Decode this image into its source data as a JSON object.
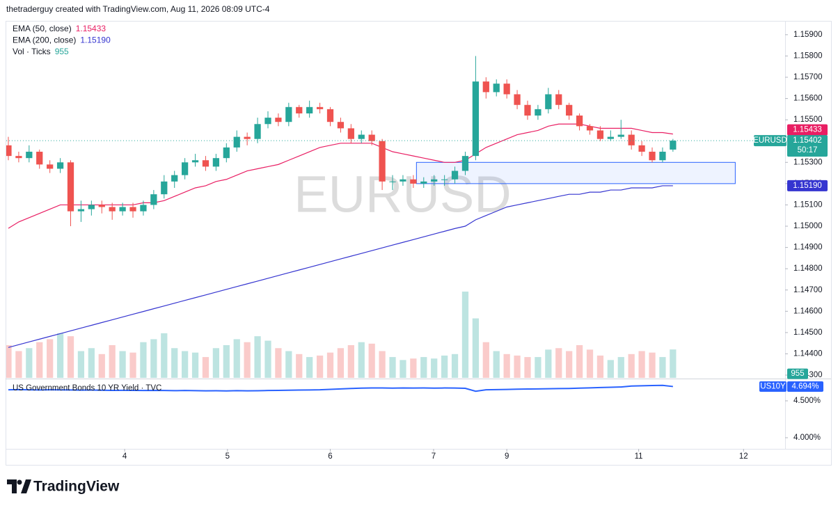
{
  "header": "thetraderguy created with TradingView.com, Aug 11, 2026 08:09 UTC-4",
  "logo": "TradingView",
  "chart_data": [
    {
      "type": "candlestick",
      "symbol": "EURUSD",
      "countdown": "50:17",
      "up_color": "#26a69a",
      "down_color": "#ef5350",
      "x": [
        0,
        1,
        2,
        3,
        4,
        5,
        6,
        7,
        8,
        9,
        10,
        11,
        12,
        13,
        14,
        15,
        16,
        17,
        18,
        19,
        20,
        21,
        22,
        23,
        24,
        25,
        26,
        27,
        28,
        29,
        30,
        31,
        32,
        33,
        34,
        35,
        36,
        37,
        38,
        39,
        40,
        41,
        42,
        43,
        44,
        45,
        46,
        47,
        48,
        49,
        50,
        51,
        52,
        53,
        54,
        55,
        56,
        57,
        58,
        59,
        60,
        61,
        62,
        63,
        64
      ],
      "open": [
        1.1538,
        1.1533,
        1.1532,
        1.1535,
        1.1529,
        1.1527,
        1.153,
        1.1507,
        1.1508,
        1.151,
        1.1509,
        1.1507,
        1.1509,
        1.1507,
        1.151,
        1.1515,
        1.1521,
        1.1524,
        1.153,
        1.1531,
        1.1528,
        1.1532,
        1.1537,
        1.1542,
        1.1541,
        1.1548,
        1.1551,
        1.1549,
        1.1556,
        1.1553,
        1.1556,
        1.1555,
        1.1549,
        1.1546,
        1.1541,
        1.1543,
        1.154,
        1.1521,
        1.1521,
        1.1522,
        1.152,
        1.1521,
        1.1522,
        1.1522,
        1.1526,
        1.1533,
        1.1568,
        1.1563,
        1.1567,
        1.1562,
        1.1557,
        1.1552,
        1.1555,
        1.1562,
        1.1557,
        1.1552,
        1.1547,
        1.1545,
        1.1541,
        1.1542,
        1.1543,
        1.1538,
        1.1535,
        1.1531,
        1.1536
      ],
      "high": [
        1.1542,
        1.1535,
        1.1538,
        1.1536,
        1.1531,
        1.1532,
        1.1531,
        1.1512,
        1.1512,
        1.1512,
        1.1511,
        1.1511,
        1.1511,
        1.1512,
        1.1517,
        1.1524,
        1.1526,
        1.1532,
        1.1534,
        1.1533,
        1.1534,
        1.1539,
        1.1545,
        1.1544,
        1.1551,
        1.1554,
        1.1553,
        1.1558,
        1.1557,
        1.1559,
        1.1558,
        1.1556,
        1.1551,
        1.1548,
        1.1545,
        1.1545,
        1.1541,
        1.1524,
        1.1524,
        1.1524,
        1.1523,
        1.1524,
        1.1524,
        1.1528,
        1.1535,
        1.158,
        1.157,
        1.1569,
        1.1569,
        1.1564,
        1.1559,
        1.1557,
        1.1565,
        1.1564,
        1.1558,
        1.1553,
        1.1548,
        1.1547,
        1.1545,
        1.155,
        1.1545,
        1.154,
        1.1537,
        1.1537,
        1.1541
      ],
      "low": [
        1.1531,
        1.153,
        1.153,
        1.1527,
        1.1525,
        1.1525,
        1.15,
        1.1502,
        1.1505,
        1.1506,
        1.1503,
        1.1505,
        1.1504,
        1.1505,
        1.1508,
        1.1513,
        1.1518,
        1.1522,
        1.1528,
        1.1526,
        1.1526,
        1.153,
        1.1535,
        1.1538,
        1.1539,
        1.1546,
        1.1547,
        1.1547,
        1.1551,
        1.1551,
        1.1553,
        1.1547,
        1.1544,
        1.1539,
        1.1539,
        1.1538,
        1.1517,
        1.1517,
        1.1519,
        1.1518,
        1.1518,
        1.1519,
        1.1519,
        1.152,
        1.1524,
        1.1531,
        1.156,
        1.1561,
        1.156,
        1.1555,
        1.155,
        1.155,
        1.1553,
        1.1555,
        1.155,
        1.1545,
        1.1543,
        1.154,
        1.154,
        1.1541,
        1.1536,
        1.1533,
        1.153,
        1.153,
        1.1535
      ],
      "close": [
        1.1533,
        1.1532,
        1.1535,
        1.1529,
        1.1527,
        1.153,
        1.1507,
        1.1508,
        1.151,
        1.1509,
        1.1507,
        1.1509,
        1.1507,
        1.151,
        1.1515,
        1.1521,
        1.1524,
        1.153,
        1.1531,
        1.1528,
        1.1532,
        1.1537,
        1.1542,
        1.1541,
        1.1548,
        1.1551,
        1.1549,
        1.1556,
        1.1553,
        1.1556,
        1.1555,
        1.1549,
        1.1546,
        1.1541,
        1.1543,
        1.154,
        1.1521,
        1.1521,
        1.1522,
        1.152,
        1.1521,
        1.1522,
        1.1522,
        1.1526,
        1.1533,
        1.1568,
        1.1563,
        1.1567,
        1.1562,
        1.1557,
        1.1552,
        1.1555,
        1.1562,
        1.1557,
        1.1552,
        1.1547,
        1.1545,
        1.1541,
        1.1542,
        1.1543,
        1.1538,
        1.1535,
        1.1531,
        1.1535,
        1.15402
      ],
      "series": [
        {
          "name": "EMA (50, close)",
          "color": "#e91e63",
          "values": [
            1.1499,
            1.1502,
            1.1504,
            1.1506,
            1.1508,
            1.151,
            1.151,
            1.151,
            1.151,
            1.151,
            1.151,
            1.151,
            1.151,
            1.1511,
            1.1511,
            1.1512,
            1.1514,
            1.1516,
            1.1518,
            1.1519,
            1.1521,
            1.1522,
            1.1524,
            1.1526,
            1.1527,
            1.1528,
            1.1529,
            1.1531,
            1.1533,
            1.1535,
            1.1537,
            1.1538,
            1.1539,
            1.1539,
            1.1539,
            1.1539,
            1.1537,
            1.1535,
            1.1534,
            1.1533,
            1.1532,
            1.1531,
            1.153,
            1.153,
            1.1531,
            1.1534,
            1.1537,
            1.1539,
            1.1541,
            1.1543,
            1.1544,
            1.1545,
            1.1547,
            1.1548,
            1.1548,
            1.1548,
            1.1547,
            1.1546,
            1.1546,
            1.1546,
            1.1546,
            1.1545,
            1.1544,
            1.1544,
            1.15433
          ]
        },
        {
          "name": "EMA (200, close)",
          "color": "#3535d0",
          "value_label": "1.15190",
          "values": [
            1.1443,
            1.14443,
            1.14456,
            1.14469,
            1.14482,
            1.14495,
            1.14508,
            1.14521,
            1.14534,
            1.14547,
            1.1456,
            1.14573,
            1.14586,
            1.14599,
            1.14612,
            1.14625,
            1.14638,
            1.14651,
            1.14664,
            1.14677,
            1.1469,
            1.14703,
            1.14716,
            1.14729,
            1.14742,
            1.14755,
            1.14768,
            1.14781,
            1.14794,
            1.14807,
            1.1482,
            1.14833,
            1.14846,
            1.14859,
            1.14872,
            1.14885,
            1.14898,
            1.14911,
            1.14924,
            1.14937,
            1.1495,
            1.14963,
            1.14976,
            1.14989,
            1.15,
            1.1503,
            1.1505,
            1.1507,
            1.1509,
            1.151,
            1.1511,
            1.1512,
            1.1513,
            1.1514,
            1.1515,
            1.1515,
            1.1516,
            1.1516,
            1.1517,
            1.1517,
            1.1518,
            1.1518,
            1.1518,
            1.1519,
            1.1519
          ]
        }
      ],
      "volume": {
        "name": "Vol · Ticks",
        "ylim": [
          0,
          12000
        ],
        "values": [
          1100,
          900,
          1000,
          1200,
          1300,
          1500,
          1400,
          900,
          1000,
          800,
          1100,
          900,
          850,
          1200,
          1300,
          1500,
          1000,
          900,
          850,
          700,
          1000,
          1100,
          1300,
          1200,
          1400,
          1250,
          1000,
          900,
          800,
          700,
          750,
          850,
          1000,
          1100,
          1200,
          1150,
          900,
          700,
          600,
          650,
          700,
          650,
          750,
          800,
          2900,
          2000,
          1200,
          900,
          800,
          750,
          700,
          700,
          950,
          1000,
          900,
          1100,
          950,
          750,
          600,
          700,
          800,
          900,
          850,
          700,
          955
        ]
      },
      "zone": {
        "x": [
          39.3,
          70
        ],
        "y": [
          1.153,
          1.152
        ],
        "color": "#2962ff"
      },
      "xlim": [
        -0.2,
        74.8
      ],
      "xticks": [
        {
          "value": 11.2,
          "label": "4"
        },
        {
          "value": 21.1,
          "label": "5"
        },
        {
          "value": 31.0,
          "label": "6"
        },
        {
          "value": 40.95,
          "label": "7"
        },
        {
          "value": 48.0,
          "label": "9"
        },
        {
          "value": 60.7,
          "label": "11"
        },
        {
          "value": 70.8,
          "label": "12"
        }
      ],
      "ylim": [
        1.14287,
        1.15965
      ],
      "yticks": [
        {
          "value": 1.159,
          "label": "1.15900"
        },
        {
          "value": 1.158,
          "label": "1.15800"
        },
        {
          "value": 1.157,
          "label": "1.15700"
        },
        {
          "value": 1.156,
          "label": "1.15600"
        },
        {
          "value": 1.155,
          "label": "1.15500"
        },
        {
          "value": 1.154,
          "label": "1.15400"
        },
        {
          "value": 1.153,
          "label": "1.15300"
        },
        {
          "value": 1.152,
          "label": "1.15200"
        },
        {
          "value": 1.151,
          "label": "1.15100"
        },
        {
          "value": 1.15,
          "label": "1.15000"
        },
        {
          "value": 1.149,
          "label": "1.14900"
        },
        {
          "value": 1.148,
          "label": "1.14800"
        },
        {
          "value": 1.147,
          "label": "1.14700"
        },
        {
          "value": 1.146,
          "label": "1.14600"
        },
        {
          "value": 1.145,
          "label": "1.14500"
        },
        {
          "value": 1.144,
          "label": "1.14400"
        },
        {
          "value": 1.143,
          "label": "1.14300"
        }
      ]
    },
    {
      "type": "line",
      "name": "US Government Bonds 10 YR Yield · TVC",
      "symbol": "US10Y",
      "color": "#2962ff",
      "value_label": "4.694%",
      "x": [
        0,
        1,
        2,
        3,
        4,
        5,
        6,
        7,
        8,
        9,
        10,
        11,
        12,
        13,
        14,
        15,
        16,
        17,
        18,
        19,
        20,
        21,
        22,
        23,
        24,
        25,
        26,
        27,
        28,
        29,
        30,
        31,
        32,
        33,
        34,
        35,
        36,
        37,
        38,
        39,
        40,
        41,
        42,
        43,
        44,
        45,
        46,
        47,
        48,
        49,
        50,
        51,
        52,
        53,
        54,
        55,
        56,
        57,
        58,
        59,
        60,
        61,
        62,
        63,
        64
      ],
      "values": [
        4.65,
        4.652,
        4.65,
        4.648,
        4.65,
        4.649,
        4.647,
        4.645,
        4.646,
        4.644,
        4.642,
        4.643,
        4.641,
        4.64,
        4.642,
        4.64,
        4.638,
        4.64,
        4.638,
        4.636,
        4.637,
        4.635,
        4.638,
        4.636,
        4.637,
        4.64,
        4.642,
        4.644,
        4.646,
        4.648,
        4.65,
        4.656,
        4.662,
        4.668,
        4.672,
        4.675,
        4.674,
        4.672,
        4.675,
        4.673,
        4.674,
        4.672,
        4.674,
        4.673,
        4.67,
        4.63,
        4.65,
        4.652,
        4.655,
        4.658,
        4.66,
        4.662,
        4.664,
        4.666,
        4.668,
        4.672,
        4.676,
        4.68,
        4.684,
        4.688,
        4.7,
        4.704,
        4.708,
        4.71,
        4.694
      ],
      "ylim": [
        3.849,
        4.7925
      ],
      "yticks": [
        {
          "value": 4.5,
          "label": "4.500%"
        },
        {
          "value": 4.0,
          "label": "4.000%"
        }
      ]
    }
  ]
}
